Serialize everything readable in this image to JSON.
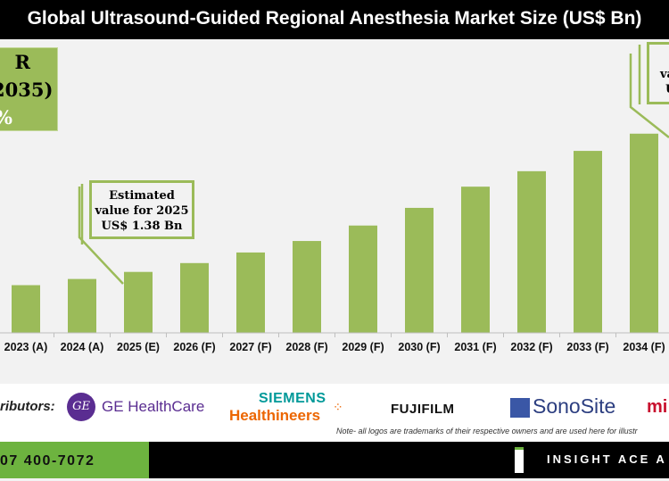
{
  "header": {
    "title": "Global Ultrasound-Guided Regional Anesthesia Market Size (US$ Bn)"
  },
  "cagr_box": {
    "lines": [
      "R",
      "2035)",
      "%"
    ]
  },
  "callout_2025": {
    "lines": [
      "Estimated",
      "value for 2025",
      "US$ 1.38 Bn"
    ]
  },
  "callout_right": {
    "lines": [
      "va",
      "U"
    ]
  },
  "chart_data": {
    "type": "bar",
    "title": "Global Ultrasound-Guided Regional Anesthesia Market Size (US$ Bn)",
    "categories": [
      "2023 (A)",
      "2024 (A)",
      "2025 (E)",
      "2026 (F)",
      "2027 (F)",
      "2028 (F)",
      "2029 (F)",
      "2030 (F)",
      "2031 (F)",
      "2032 (F)",
      "2033 (F)",
      "2034 (F)"
    ],
    "values": [
      1.08,
      1.22,
      1.38,
      1.58,
      1.82,
      2.08,
      2.43,
      2.83,
      3.31,
      3.66,
      4.12,
      4.51
    ],
    "xlabel": "",
    "ylabel": "",
    "grid": false,
    "bar_color": "#9bbb59"
  },
  "distributors": {
    "label": "ributors:",
    "logos": [
      "GE HealthCare",
      "SIEMENS",
      "Healthineers",
      "FUJIFILM",
      "SonoSite",
      "mi"
    ],
    "note": "Note- all logos are trademarks of their respective owners and are used here for illustr"
  },
  "footer": {
    "phone": "07 400-7072",
    "brand": "INSIGHT ACE A"
  }
}
